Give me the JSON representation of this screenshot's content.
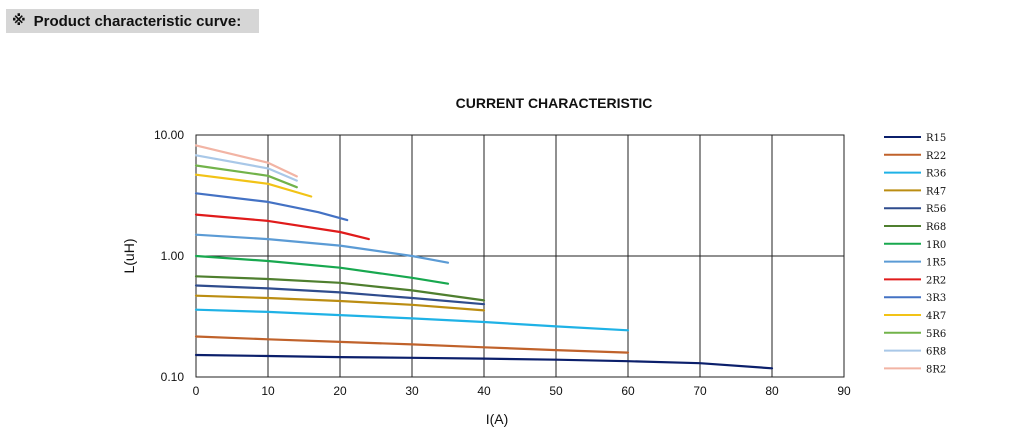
{
  "header": {
    "mark": "※",
    "title": "Product characteristic curve:"
  },
  "chart_data": {
    "type": "line",
    "title": "CURRENT CHARACTERISTIC",
    "xlabel": "I(A)",
    "ylabel": "L(uH)",
    "xlim": [
      0,
      90
    ],
    "ylim": [
      0.1,
      10
    ],
    "yscale": "log",
    "x_ticks": [
      "0",
      "10",
      "20",
      "30",
      "40",
      "50",
      "60",
      "70",
      "80",
      "90"
    ],
    "y_ticks": [
      "10.00",
      "1.00",
      "0.10"
    ],
    "grid": true,
    "legend_position": "right",
    "series": [
      {
        "name": "R15",
        "color": "#0b1f6b",
        "points": [
          [
            0,
            0.152
          ],
          [
            10,
            0.149
          ],
          [
            20,
            0.146
          ],
          [
            30,
            0.144
          ],
          [
            40,
            0.142
          ],
          [
            50,
            0.139
          ],
          [
            60,
            0.135
          ],
          [
            70,
            0.13
          ],
          [
            80,
            0.118
          ]
        ]
      },
      {
        "name": "R22",
        "color": "#c0622b",
        "points": [
          [
            0,
            0.216
          ],
          [
            10,
            0.205
          ],
          [
            20,
            0.195
          ],
          [
            30,
            0.186
          ],
          [
            40,
            0.176
          ],
          [
            50,
            0.167
          ],
          [
            60,
            0.159
          ]
        ]
      },
      {
        "name": "R36",
        "color": "#1fb2e6",
        "points": [
          [
            0,
            0.36
          ],
          [
            10,
            0.345
          ],
          [
            20,
            0.325
          ],
          [
            30,
            0.305
          ],
          [
            40,
            0.285
          ],
          [
            50,
            0.262
          ],
          [
            60,
            0.243
          ]
        ]
      },
      {
        "name": "R47",
        "color": "#bb8d12",
        "points": [
          [
            0,
            0.47
          ],
          [
            10,
            0.45
          ],
          [
            20,
            0.425
          ],
          [
            30,
            0.395
          ],
          [
            40,
            0.355
          ]
        ]
      },
      {
        "name": "R56",
        "color": "#2f4c8d",
        "points": [
          [
            0,
            0.57
          ],
          [
            10,
            0.54
          ],
          [
            20,
            0.5
          ],
          [
            30,
            0.45
          ],
          [
            40,
            0.4
          ]
        ]
      },
      {
        "name": "R68",
        "color": "#4f7f2f",
        "points": [
          [
            0,
            0.68
          ],
          [
            10,
            0.645
          ],
          [
            20,
            0.6
          ],
          [
            30,
            0.52
          ],
          [
            40,
            0.43
          ]
        ]
      },
      {
        "name": "1R0",
        "color": "#18a84f",
        "points": [
          [
            0,
            1.0
          ],
          [
            10,
            0.91
          ],
          [
            20,
            0.8
          ],
          [
            30,
            0.66
          ],
          [
            35,
            0.59
          ]
        ]
      },
      {
        "name": "1R5",
        "color": "#5b9bd5",
        "points": [
          [
            0,
            1.5
          ],
          [
            10,
            1.38
          ],
          [
            20,
            1.22
          ],
          [
            30,
            1.0
          ],
          [
            35,
            0.88
          ]
        ]
      },
      {
        "name": "2R2",
        "color": "#e01b1b",
        "points": [
          [
            0,
            2.2
          ],
          [
            10,
            1.95
          ],
          [
            20,
            1.58
          ],
          [
            24,
            1.38
          ]
        ]
      },
      {
        "name": "3R3",
        "color": "#4472c4",
        "points": [
          [
            0,
            3.3
          ],
          [
            10,
            2.8
          ],
          [
            17,
            2.3
          ],
          [
            21,
            1.98
          ]
        ]
      },
      {
        "name": "4R7",
        "color": "#f2c316",
        "points": [
          [
            0,
            4.7
          ],
          [
            10,
            3.95
          ],
          [
            16,
            3.1
          ]
        ]
      },
      {
        "name": "5R6",
        "color": "#72b34a",
        "points": [
          [
            0,
            5.6
          ],
          [
            10,
            4.6
          ],
          [
            14,
            3.7
          ]
        ]
      },
      {
        "name": "6R8",
        "color": "#a9c8e8",
        "points": [
          [
            0,
            6.8
          ],
          [
            10,
            5.3
          ],
          [
            14,
            4.2
          ]
        ]
      },
      {
        "name": "8R2",
        "color": "#f2b4a4",
        "points": [
          [
            0,
            8.2
          ],
          [
            10,
            5.9
          ],
          [
            14,
            4.55
          ]
        ]
      }
    ]
  }
}
